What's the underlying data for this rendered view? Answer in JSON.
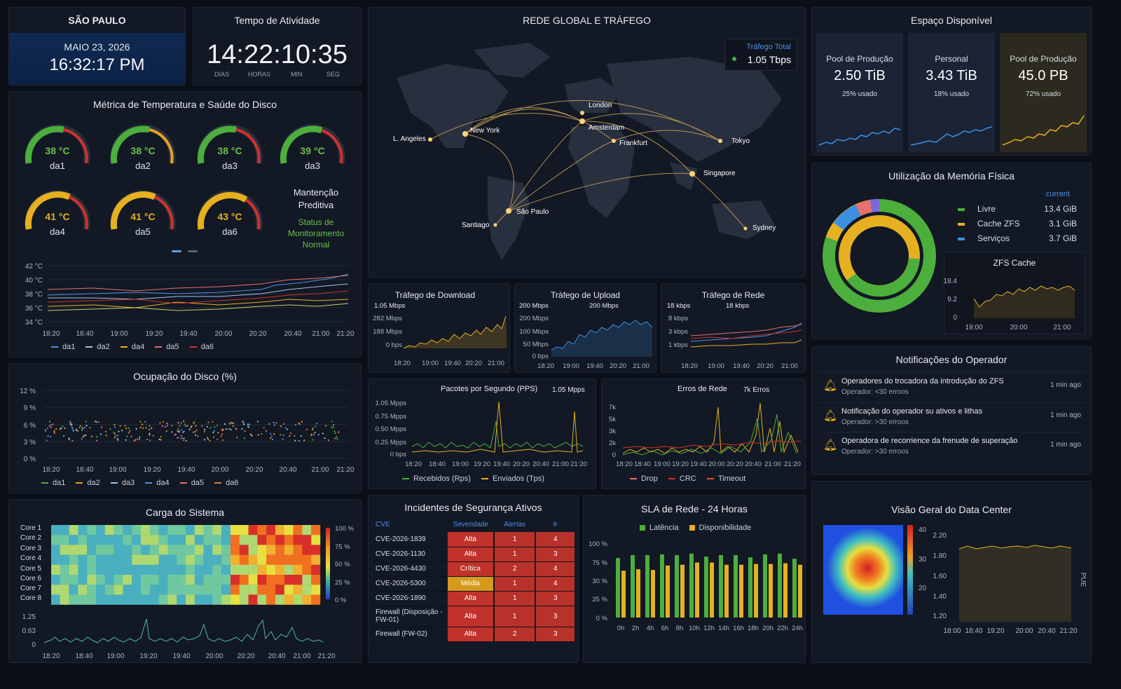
{
  "city": {
    "name": "SÃO PAULO",
    "date": "MAIO 23, 2026",
    "time": "16:32:17 PM"
  },
  "uptime": {
    "title": "Tempo de Atividade",
    "value": "14:22:10:35",
    "units": [
      "DIAS",
      "HORAS",
      "MIN",
      "SEG"
    ]
  },
  "network": {
    "title": "REDE GLOBAL E TRÁFEGO",
    "total_label": "Tráfego Total",
    "total_value": "1.05 Tbps",
    "cities": [
      "London",
      "Amsterdam",
      "Frankfurt",
      "L. Angeles",
      "New York",
      "Tokyo",
      "Singapore",
      "São Paulo",
      "Santiago",
      "Sydney"
    ]
  },
  "storage": {
    "title": "Espaço Disponível",
    "pools": [
      {
        "name": "Pool de Produção",
        "value": "2.50 TiB",
        "usage": "25% usado",
        "color": "#3d8fe0"
      },
      {
        "name": "Personal",
        "value": "3.43 TiB",
        "usage": "18% usado",
        "color": "#3d8fe0"
      },
      {
        "name": "Pool de Produção",
        "value": "45.0 PB",
        "usage": "72% usado",
        "color": "#e6b020"
      }
    ]
  },
  "temperature": {
    "title": "Métrica de Temperatura e Saúde do Disco",
    "gauges": [
      {
        "value": "38 °C",
        "label": "da1",
        "color": "#6cc04a"
      },
      {
        "value": "38 °C",
        "label": "da2",
        "color": "#6cc04a"
      },
      {
        "value": "38 °C",
        "label": "da3",
        "color": "#6cc04a"
      },
      {
        "value": "39 °C",
        "label": "da3",
        "color": "#6cc04a"
      },
      {
        "value": "41 °C",
        "label": "da4",
        "color": "#e6b020"
      },
      {
        "value": "41 °C",
        "label": "da5",
        "color": "#e6b020"
      },
      {
        "value": "43 °C",
        "label": "da6",
        "color": "#e6b020"
      }
    ],
    "maint_title": "Mantenção Preditiva",
    "maint_status": "Status de Monitoramento Normal",
    "yticks": [
      "42 °C",
      "40 °C",
      "38 °C",
      "36 °C",
      "34 °C"
    ],
    "xticks": [
      "18:20",
      "18:40",
      "19:00",
      "19:20",
      "19:40",
      "20:00",
      "20:20",
      "20:40",
      "21:00",
      "21:20"
    ],
    "legend": [
      "da1",
      "da2",
      "da4",
      "da5",
      "da6"
    ]
  },
  "disk_occupation": {
    "title": "Ocupação do Disco (%)",
    "yticks": [
      "12 %",
      "9 %",
      "6 %",
      "3 %",
      "0 %"
    ],
    "xticks": [
      "18:20",
      "18:40",
      "19:00",
      "19:20",
      "19:40",
      "20:00",
      "20:20",
      "20:40",
      "21:00",
      "21:20"
    ],
    "legend": [
      "da1",
      "da2",
      "da3",
      "da4",
      "da5",
      "da6"
    ]
  },
  "system_load": {
    "title": "Carga do Sistema",
    "cores": [
      "Core 1",
      "Core 2",
      "Core 3",
      "Core 4",
      "Core 5",
      "Core 6",
      "Core 7",
      "Core 8"
    ],
    "scale": [
      "100 %",
      "75 %",
      "50 %",
      "25 %",
      "0 %"
    ],
    "yticks": [
      "1.25",
      "0.63",
      "0"
    ],
    "xticks": [
      "18:20",
      "18:40",
      "19:00",
      "19:20",
      "19:40",
      "20:00",
      "20:20",
      "20:40",
      "21:00",
      "21:20"
    ]
  },
  "download": {
    "title": "Tráfego de Download",
    "peak": "1.05 Mbps",
    "yticks": [
      "282 Mbps",
      "188 Mbps",
      "0 bps"
    ],
    "xticks": [
      "18:20",
      "19:00",
      "19:40",
      "20:20",
      "21:00"
    ]
  },
  "upload": {
    "title": "Tráfego de Upload",
    "peak": "200 Mbps",
    "peak2": "200 Mbps",
    "yticks": [
      "200 Mbps",
      "100 Mbps",
      "50 Mbps",
      "0 bps"
    ],
    "xticks": [
      "18:20",
      "19:00",
      "19:40",
      "20:20",
      "21:00"
    ]
  },
  "nettraffic": {
    "title": "Tráfego de Rede",
    "peak": "18 kbps",
    "peak2": "18 kbps",
    "yticks": [
      "8 kbps",
      "3 kbps",
      "1 kbps"
    ],
    "xticks": [
      "18:20",
      "19:00",
      "19:40",
      "20:20",
      "21:00"
    ]
  },
  "pps": {
    "title": "Pacotes por Segundo (PPS)",
    "peak": "1.05 Mpps",
    "yticks": [
      "1.05 Mpps",
      "0.75 Mpps",
      "0.50 Mpps",
      "0.25 Mpps",
      "0 bps"
    ],
    "xticks": [
      "18:20",
      "18:40",
      "19:00",
      "19:20",
      "19:40",
      "20:20",
      "20:40",
      "21:00",
      "21:20"
    ],
    "legend": [
      "Recebidos (Rps)",
      "Enviados (Tps)"
    ]
  },
  "neterrors": {
    "title": "Erros de Rede",
    "peak": "7k Erros",
    "yticks": [
      "7k",
      "5k",
      "3k",
      "2k",
      "0"
    ],
    "xticks": [
      "18:20",
      "18:40",
      "19:00",
      "19:20",
      "19:40",
      "20:00",
      "20:20",
      "20:40",
      "21:00",
      "21:20"
    ],
    "legend": [
      "Drop",
      "CRC",
      "Timeout"
    ]
  },
  "incidents": {
    "title": "Incidentes de Segurança Ativos",
    "headers": [
      "CVE",
      "Severidade",
      "Alertas",
      "#"
    ],
    "rows": [
      {
        "cve": "CVE-2026-1839",
        "sev": "Alta",
        "alerts": "1",
        "n": "4"
      },
      {
        "cve": "CVE-2026-1130",
        "sev": "Alta",
        "alerts": "1",
        "n": "3"
      },
      {
        "cve": "CVE-2026-4430",
        "sev": "Crítica",
        "alerts": "2",
        "n": "4"
      },
      {
        "cve": "CVE-2026-5300",
        "sev": "Média",
        "alerts": "1",
        "n": "4"
      },
      {
        "cve": "CVE-2026-1890",
        "sev": "Alta",
        "alerts": "1",
        "n": "3"
      },
      {
        "cve": "Firewall (Disposição - FW-01)",
        "sev": "Alta",
        "alerts": "1",
        "n": "3"
      },
      {
        "cve": "Firewall (FW-02)",
        "sev": "Alta",
        "alerts": "2",
        "n": "3"
      }
    ]
  },
  "sla": {
    "title": "SLA de Rede - 24 Horas",
    "legend": [
      "Latência",
      "Disponibilidade"
    ],
    "yticks": [
      "100 %",
      "75 %",
      "30 %",
      "25 %",
      "0 %"
    ],
    "xticks": [
      "0h",
      "2h",
      "4h",
      "6h",
      "8h",
      "10h",
      "12h",
      "14h",
      "16h",
      "18h",
      "20h",
      "22h",
      "24h"
    ],
    "chart_data": {
      "type": "bar",
      "categories": [
        "0h",
        "2h",
        "4h",
        "6h",
        "8h",
        "10h",
        "12h",
        "14h",
        "16h",
        "18h",
        "20h",
        "22h",
        "24h"
      ],
      "series": [
        {
          "name": "Latência",
          "values": [
            80,
            84,
            84,
            85,
            84,
            86,
            82,
            84,
            84,
            81,
            85,
            86,
            79
          ]
        },
        {
          "name": "Disponibilidade",
          "values": [
            63,
            65,
            64,
            70,
            71,
            74,
            74,
            71,
            71,
            72,
            72,
            73,
            71
          ]
        }
      ],
      "ylim": [
        0,
        100
      ]
    }
  },
  "memory": {
    "title": "Utilização da Memória Física",
    "current_label": "current",
    "items": [
      {
        "name": "Livre",
        "value": "13.4 GiB",
        "color": "#4cae3c"
      },
      {
        "name": "Cache ZFS",
        "value": "3.1 GiB",
        "color": "#e6b020"
      },
      {
        "name": "Serviços",
        "value": "3.7 GiB",
        "color": "#3d8fe0"
      }
    ],
    "zfs_title": "ZFS Cache",
    "zfs_yticks": [
      "18.4",
      "9.2",
      "0"
    ],
    "zfs_xticks": [
      "19:00",
      "20:00",
      "21:00"
    ]
  },
  "notifications": {
    "title": "Notificações do Operador",
    "items": [
      {
        "text": "Operadores do trocadora da introdução do ZFS",
        "sub": "Operador: <30 erroos",
        "time": "1 min ago"
      },
      {
        "text": "Notificação do operador su ativos e lithas",
        "sub": "Operador: >30 erroos",
        "time": "1 min ago"
      },
      {
        "text": "Operadora de recorrience da frenude de superação",
        "sub": "Operador: >30 erroos",
        "time": "1 min ago"
      }
    ]
  },
  "datacenter": {
    "title": "Visão Geral do Data Center",
    "scale": [
      "40",
      "30",
      "20"
    ],
    "pue_label": "PUE",
    "yticks": [
      "2.20",
      "1.80",
      "1.60",
      "1.40",
      "1.20"
    ],
    "xticks": [
      "18:00",
      "18:40",
      "19:20",
      "20:00",
      "20:40",
      "21:20"
    ]
  }
}
